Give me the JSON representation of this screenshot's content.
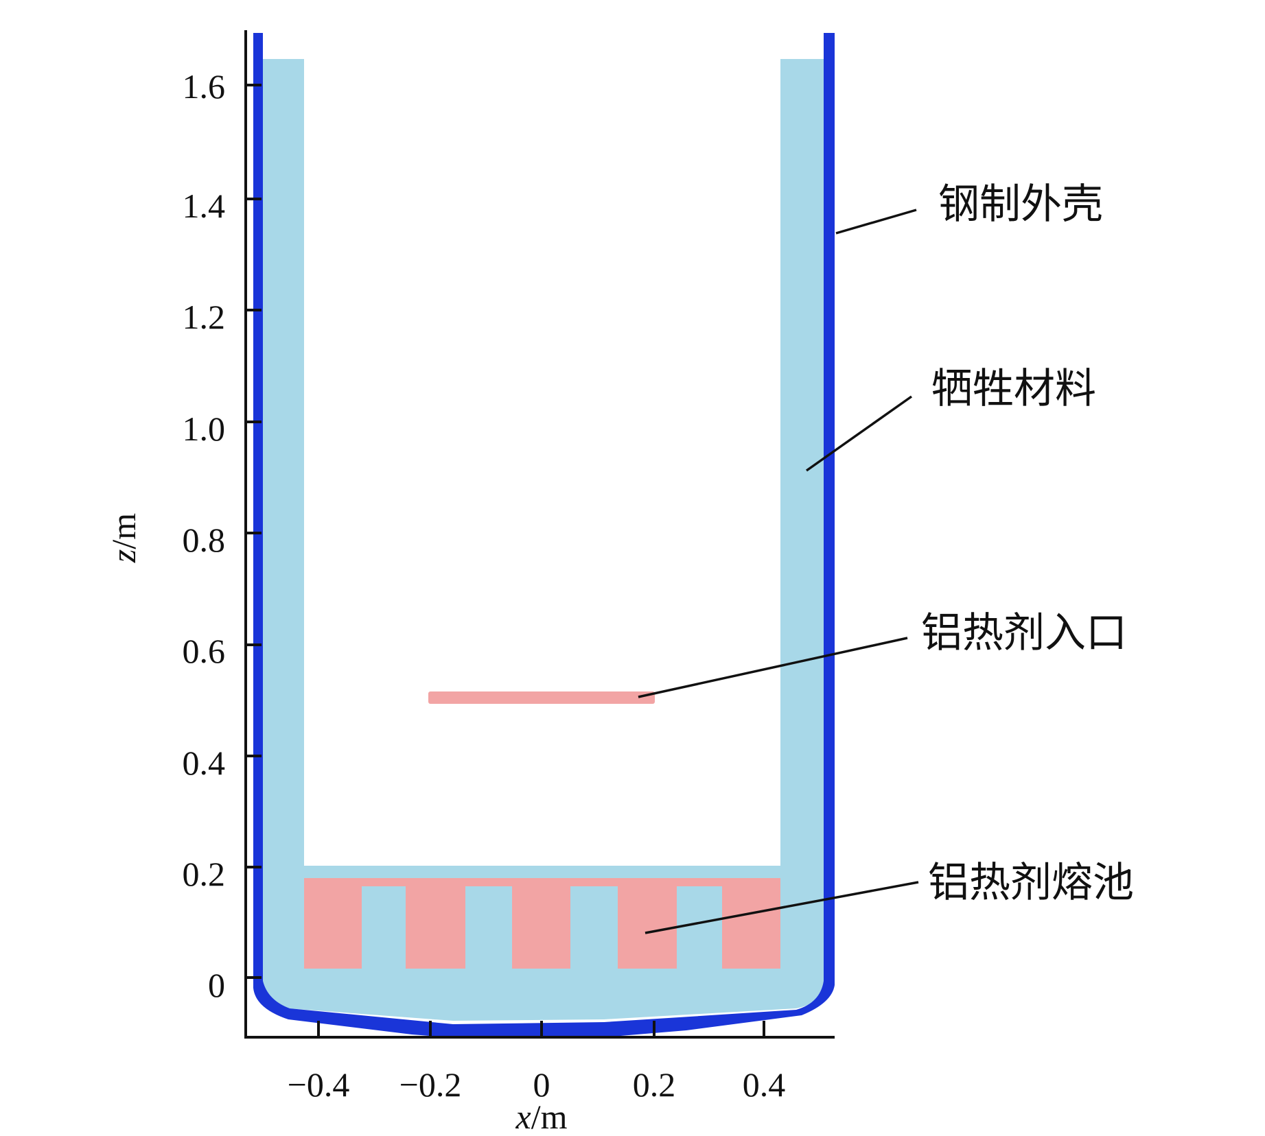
{
  "diagram": {
    "x_axis": {
      "title_var": "x",
      "title_unit": "/m",
      "ticks": [
        "−0.4",
        "−0.2",
        "0",
        "0.2",
        "0.4"
      ]
    },
    "y_axis": {
      "title_var": "z",
      "title_unit": "/m",
      "ticks": [
        "0",
        "0.2",
        "0.4",
        "0.6",
        "0.8",
        "1.0",
        "1.2",
        "1.4",
        "1.6"
      ]
    },
    "labels": {
      "steel_shell": "钢制外壳",
      "sacrificial_material": "牺牲材料",
      "thermite_inlet": "铝热剂入口",
      "thermite_pool": "铝热剂熔池"
    },
    "colors": {
      "steel_shell": "#1a35d8",
      "sacrificial_material": "#a8d8e8",
      "thermite": "#f2a4a4",
      "axis": "#111111"
    }
  }
}
